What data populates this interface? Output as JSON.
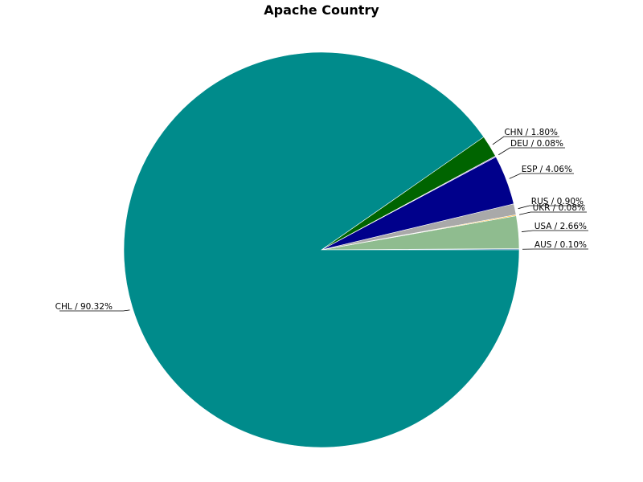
{
  "chart_data": {
    "type": "pie",
    "title": "Apache Country",
    "slices": [
      {
        "label": "AUS / 0.10%",
        "value": 0.1,
        "color": "#4682b4"
      },
      {
        "label": "USA / 2.66%",
        "value": 2.66,
        "color": "#8fbc8f"
      },
      {
        "label": "UKR / 0.08%",
        "value": 0.08,
        "color": "#ffa500"
      },
      {
        "label": "RUS / 0.90%",
        "value": 0.9,
        "color": "#a9a9a9"
      },
      {
        "label": "ESP / 4.06%",
        "value": 4.06,
        "color": "#00008b"
      },
      {
        "label": "DEU / 0.08%",
        "value": 0.08,
        "color": "#9370db"
      },
      {
        "label": "CHN / 1.80%",
        "value": 1.8,
        "color": "#006400"
      },
      {
        "label": "CHL / 90.32%",
        "value": 90.32,
        "color": "#008b8b"
      }
    ]
  }
}
